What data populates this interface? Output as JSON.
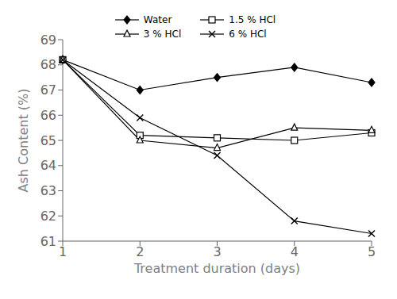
{
  "chart_data": {
    "type": "line",
    "xlabel": "Treatment duration (days)",
    "ylabel": "Ash Content (%)",
    "x": [
      1,
      2,
      3,
      4,
      5
    ],
    "series": [
      {
        "name": "Water",
        "color": "#000000",
        "marker": "filled_diamond",
        "values": [
          68.2,
          67.0,
          67.5,
          67.9,
          67.3
        ]
      },
      {
        "name": "1.5 % HCl",
        "color": "#000000",
        "marker": "open_square",
        "values": [
          68.2,
          65.2,
          65.1,
          65.0,
          65.3
        ]
      },
      {
        "name": "3 % HCl",
        "color": "#000000",
        "marker": "open_triangle",
        "values": [
          68.2,
          65.0,
          64.7,
          65.5,
          65.4
        ]
      },
      {
        "name": "6 % HCl",
        "color": "#000000",
        "marker": "x",
        "values": [
          68.2,
          65.9,
          64.4,
          61.8,
          61.3
        ]
      }
    ],
    "xlim": [
      1,
      5
    ],
    "ylim": [
      61,
      69
    ],
    "xticks": [
      1,
      2,
      3,
      4,
      5
    ],
    "yticks": [
      61,
      62,
      63,
      64,
      65,
      66,
      67,
      68,
      69
    ],
    "grid": false,
    "legend": "top"
  }
}
